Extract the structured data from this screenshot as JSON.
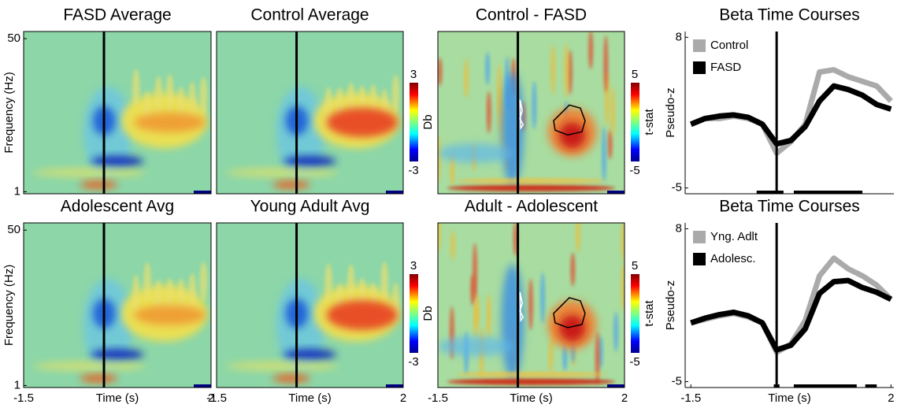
{
  "chart_data": [
    {
      "type": "heatmap",
      "title": "FASD Average",
      "xlim": [
        -1.5,
        2
      ],
      "ylim": [
        0.95,
        60
      ],
      "log_y": true,
      "yticks": [
        1,
        50
      ],
      "ylabel": "Frequency (Hz)",
      "onset": 0
    },
    {
      "type": "heatmap",
      "title": "Control Average",
      "xlim": [
        -1.5,
        2
      ],
      "ylim": [
        0.95,
        60
      ],
      "log_y": true,
      "onset": 0,
      "colorbar": {
        "label": "Db",
        "lim": [
          -3,
          3
        ],
        "ticks": [
          3,
          -3
        ]
      }
    },
    {
      "type": "heatmap",
      "title": "Control - FASD",
      "xlim": [
        -1.5,
        2
      ],
      "ylim": [
        0.95,
        60
      ],
      "log_y": true,
      "onset": 0,
      "colorbar": {
        "label": "t-stat",
        "lim": [
          -5,
          5
        ],
        "ticks": [
          5,
          -5
        ]
      }
    },
    {
      "type": "line",
      "title": "Beta Time Courses",
      "ylabel": "Pseudo-z",
      "xlim": [
        -1.6,
        2.05
      ],
      "ylim": [
        -5.5,
        8.5
      ],
      "yticks": [
        8,
        -5
      ],
      "onset": 0,
      "legend": "upper left",
      "x": [
        -1.5,
        -1.25,
        -1,
        -0.75,
        -0.5,
        -0.25,
        0,
        0.25,
        0.5,
        0.75,
        1,
        1.25,
        1.5,
        1.75,
        2
      ],
      "series": [
        {
          "name": "Control",
          "color": "#aaaaaa",
          "values": [
            0.5,
            1.0,
            1.0,
            1.2,
            1.0,
            0.5,
            -2.0,
            -1.0,
            0.5,
            5.0,
            5.2,
            4.6,
            4.2,
            3.8,
            2.5
          ]
        },
        {
          "name": "FASD",
          "color": "#000000",
          "values": [
            0.5,
            1.0,
            1.2,
            1.3,
            1.1,
            0.5,
            -1.2,
            -0.9,
            0.3,
            2.5,
            3.8,
            3.5,
            3.0,
            2.2,
            1.8
          ]
        }
      ],
      "significant_intervals": [
        [
          -0.35,
          0.12
        ],
        [
          0.3,
          1.5
        ]
      ]
    },
    {
      "type": "heatmap",
      "title": "Adolescent Avg",
      "xlim": [
        -1.5,
        2
      ],
      "ylim": [
        0.95,
        60
      ],
      "log_y": true,
      "yticks": [
        1,
        50
      ],
      "ylabel": "Frequency (Hz)",
      "xticks": [
        -1.5,
        2
      ],
      "xlabel": "Time (s)",
      "onset": 0
    },
    {
      "type": "heatmap",
      "title": "Young Adult Avg",
      "xlim": [
        -1.5,
        2
      ],
      "ylim": [
        0.95,
        60
      ],
      "log_y": true,
      "xticks": [
        -1.5,
        2
      ],
      "xlabel": "Time (s)",
      "onset": 0,
      "colorbar": {
        "label": "Db",
        "lim": [
          -3,
          3
        ],
        "ticks": [
          3,
          -3
        ]
      }
    },
    {
      "type": "heatmap",
      "title": "Adult - Adolescent",
      "xlim": [
        -1.5,
        2
      ],
      "ylim": [
        0.95,
        60
      ],
      "log_y": true,
      "xticks": [
        -1.5,
        2
      ],
      "xlabel": "Time (s)",
      "onset": 0,
      "colorbar": {
        "label": "t-stat",
        "lim": [
          -5,
          5
        ],
        "ticks": [
          5,
          -5
        ]
      }
    },
    {
      "type": "line",
      "title": "Beta Time Courses",
      "ylabel": "Pseudo-z",
      "xlim": [
        -1.6,
        2.05
      ],
      "ylim": [
        -5.5,
        8.5
      ],
      "yticks": [
        8,
        -5
      ],
      "xticks": [
        -1.5,
        2
      ],
      "xlabel": "Time (s)",
      "onset": 0,
      "legend": "upper left",
      "x": [
        -1.5,
        -1.25,
        -1,
        -0.75,
        -0.5,
        -0.25,
        0,
        0.25,
        0.5,
        0.75,
        1,
        1.25,
        1.5,
        1.75,
        2
      ],
      "series": [
        {
          "name": "Yng. Adlt",
          "color": "#aaaaaa",
          "values": [
            0.0,
            0.3,
            0.6,
            0.8,
            0.5,
            0.0,
            -2.5,
            -1.8,
            0.2,
            4.0,
            5.5,
            4.6,
            4.0,
            3.2,
            2.0
          ]
        },
        {
          "name": "Adolesc.",
          "color": "#000000",
          "values": [
            0.0,
            0.4,
            0.7,
            0.9,
            0.6,
            0.0,
            -2.3,
            -1.9,
            -0.5,
            2.5,
            3.5,
            3.6,
            3.0,
            2.6,
            2.0
          ]
        }
      ],
      "significant_intervals": [
        [
          -0.05,
          0.05
        ],
        [
          0.3,
          1.4
        ],
        [
          1.55,
          1.75
        ]
      ]
    }
  ]
}
